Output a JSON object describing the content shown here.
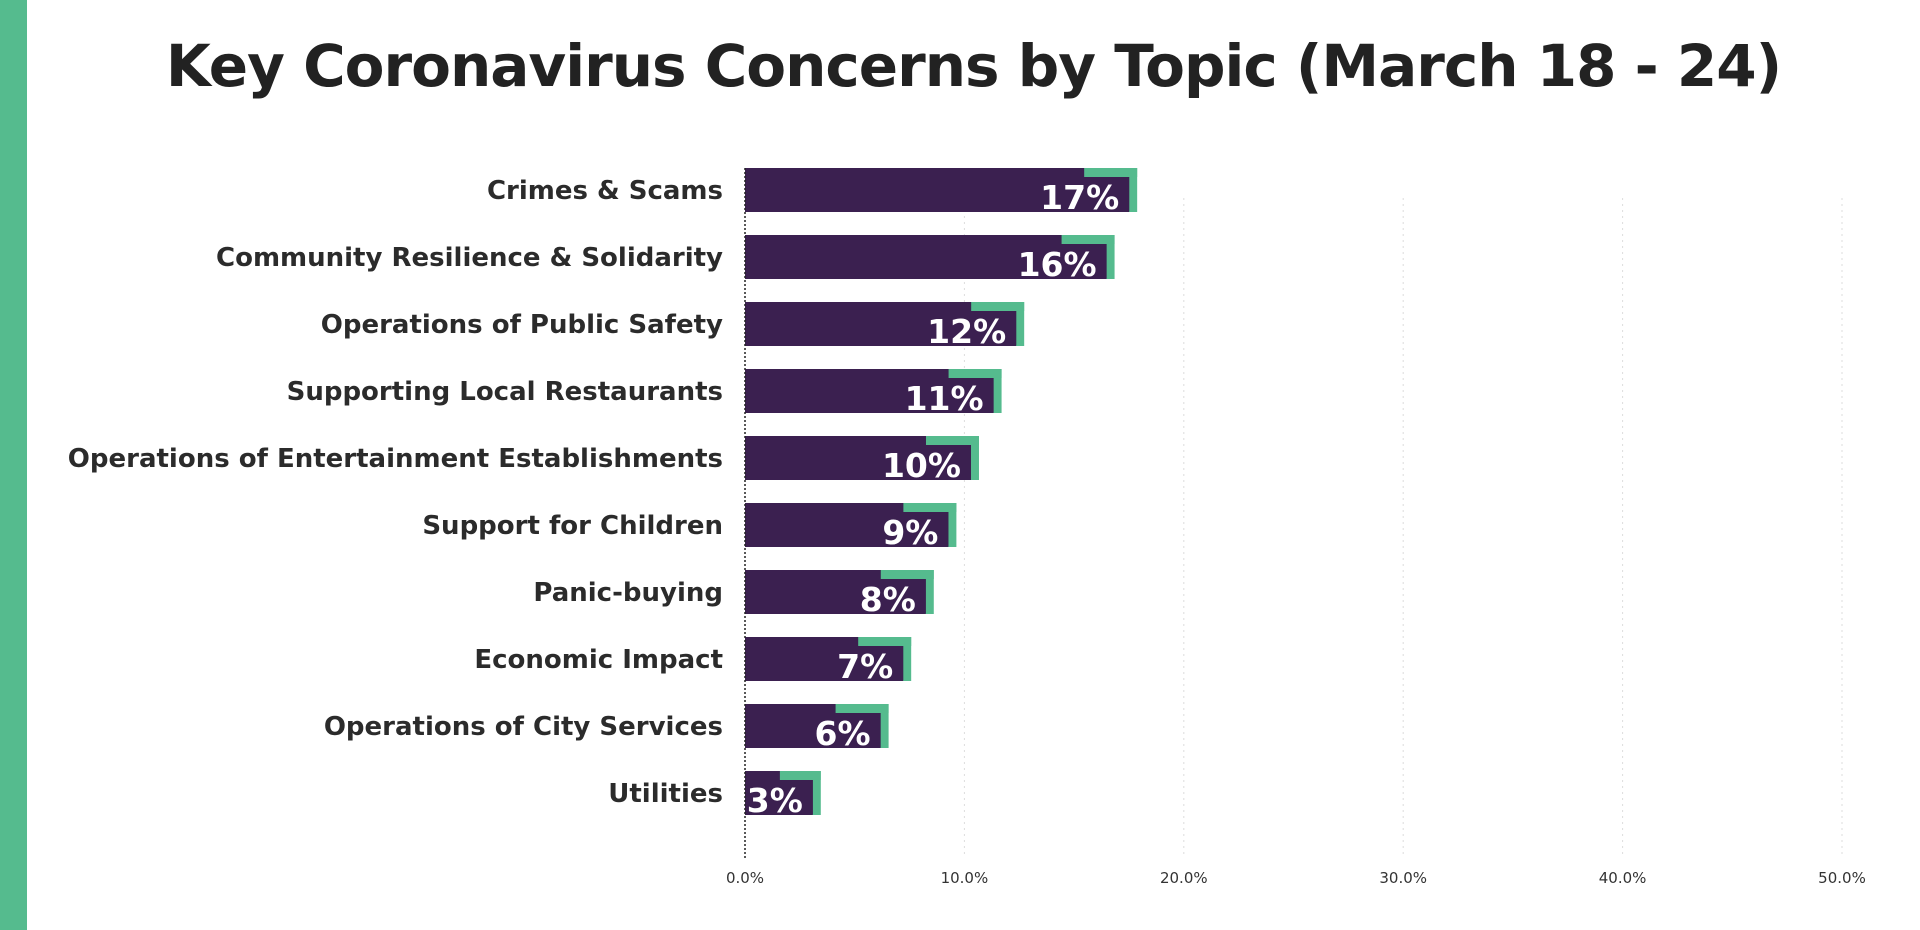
{
  "colors": {
    "accent": "#55BB8E",
    "bar_main": "#3B2050",
    "bar_shadow": "#55BB8E",
    "title": "#222222"
  },
  "chart_data": {
    "type": "bar",
    "orientation": "horizontal",
    "title": "Key Coronavirus Concerns by Topic (March 18 - 24)",
    "xlabel": "",
    "ylabel": "",
    "categories": [
      "Crimes & Scams",
      "Community Resilience & Solidarity",
      "Operations of Public Safety",
      "Supporting Local Restaurants",
      "Operations of Entertainment Establishments",
      "Support for Children",
      "Panic-buying",
      "Economic Impact",
      "Operations of City Services",
      "Utilities"
    ],
    "values": [
      17,
      16,
      12,
      11,
      10,
      9,
      8,
      7,
      6,
      3
    ],
    "value_labels": [
      "17%",
      "16%",
      "12%",
      "11%",
      "10%",
      "9%",
      "8%",
      "7%",
      "6%",
      "3%"
    ],
    "xlim": [
      0,
      50
    ],
    "x_ticks": [
      0,
      10,
      20,
      30,
      40,
      50
    ],
    "x_tick_labels": [
      "0.0%",
      "10.0%",
      "20.0%",
      "30.0%",
      "40.0%",
      "50.0%"
    ],
    "grid": true,
    "legend": "none"
  }
}
